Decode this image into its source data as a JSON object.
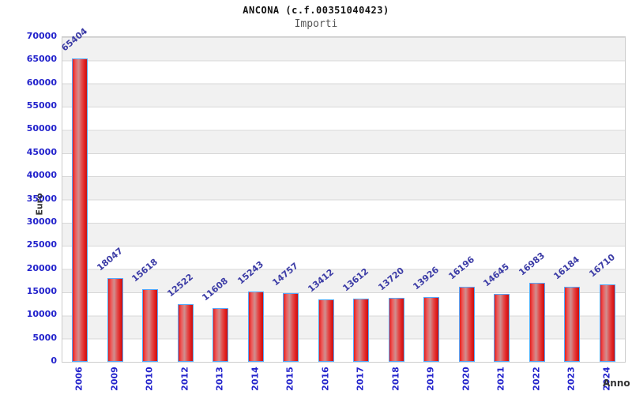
{
  "header": {
    "title": "ANCONA (c.f.00351040423)",
    "subtitle": "Importi"
  },
  "chart_data": {
    "type": "bar",
    "title": "ANCONA (c.f.00351040423)",
    "subtitle": "Importi",
    "xlabel": "Anno",
    "ylabel": "Euro",
    "categories": [
      "2006",
      "2009",
      "2010",
      "2012",
      "2013",
      "2014",
      "2015",
      "2016",
      "2017",
      "2018",
      "2019",
      "2020",
      "2021",
      "2022",
      "2023",
      "2024"
    ],
    "values": [
      65404,
      18047,
      15618,
      12522,
      11608,
      15243,
      14757,
      13412,
      13612,
      13720,
      13926,
      16196,
      14645,
      16983,
      16184,
      16710
    ],
    "bar_labels_visible": true,
    "ylim": [
      0,
      70000
    ],
    "ytick_step": 5000,
    "grid": "horizontal-bands-alternating",
    "legend": "none"
  },
  "colors": {
    "axis_label_blue": "#2323cc",
    "bar_value_label_navy": "#3c3ca6",
    "bar_fill_red": "#e01f1f",
    "bar_highlight_pink": "#cf9090",
    "bar_border_blue": "#55aaff",
    "band_gray": "#f1f1f1",
    "grid_line_gray": "#d8d8d8",
    "plot_border_gray": "#cccccc",
    "title_color": "#111111",
    "subtitle_color": "#555555",
    "axis_title_color": "#333333"
  }
}
